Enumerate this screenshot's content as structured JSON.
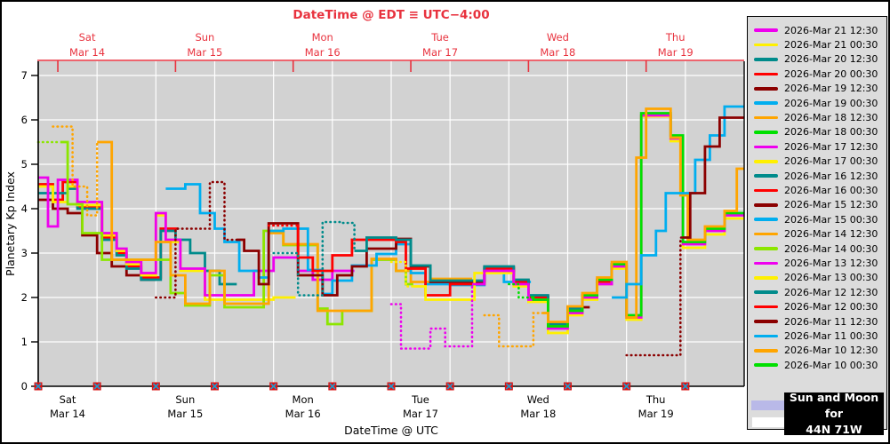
{
  "title": "DateTime @ EDT ≡ UTC−4:00",
  "xlabel_bottom": "DateTime @ UTC",
  "ylabel": "Planetary Kp Index",
  "sun_moon_box": {
    "line1": "Sun and Moon for",
    "line2": "44N 71W"
  },
  "colors": {
    "axis_red": "#E8323E",
    "plot_bg": "#D2D2D2",
    "legend_bg": "#DCDCDC",
    "grid": "#FFFFFF",
    "text": "#000000",
    "marker_red": "#DD1111",
    "marker_x": "#2299CC",
    "moon_bar": "#B9B9E8",
    "sun_bar": "#FFFFFF",
    "box_bg": "#000000",
    "box_text": "#FFFFFF"
  },
  "top_days": [
    {
      "day": "Sat",
      "date": "Mar 14"
    },
    {
      "day": "Sun",
      "date": "Mar 15"
    },
    {
      "day": "Mon",
      "date": "Mar 16"
    },
    {
      "day": "Tue",
      "date": "Mar 17"
    },
    {
      "day": "Wed",
      "date": "Mar 18"
    },
    {
      "day": "Thu",
      "date": "Mar 19"
    }
  ],
  "bottom_days": [
    {
      "day": "Sat",
      "date": "Mar 14"
    },
    {
      "day": "Sun",
      "date": "Mar 15"
    },
    {
      "day": "Mon",
      "date": "Mar 16"
    },
    {
      "day": "Tue",
      "date": "Mar 17"
    },
    {
      "day": "Wed",
      "date": "Mar 18"
    },
    {
      "day": "Thu",
      "date": "Mar 19"
    }
  ],
  "yticks": [
    0,
    1,
    2,
    3,
    4,
    5,
    6,
    7
  ],
  "chart_data": {
    "type": "line",
    "subtype": "step",
    "title": "DateTime @ EDT ≡ UTC−4:00",
    "xlabel": "DateTime @ UTC",
    "ylabel": "Planetary Kp Index",
    "x_unit": "hours since 2026-Mar-14 00:00 UTC",
    "x_range_hours": [
      0,
      144
    ],
    "ylim": [
      0,
      7.32
    ],
    "grid": "white lines, horizontal each Kp integer, vertical each 12 h",
    "legend_position": "right panel, newest forecast first",
    "marker_times_hours": [
      0,
      12,
      24,
      36,
      48,
      60,
      72,
      84,
      96,
      108,
      120,
      132
    ],
    "series": [
      {
        "name": "2026-Mar 21 12:30",
        "color": "#EE00EE",
        "dotted_until": 0,
        "end": 0,
        "points": []
      },
      {
        "name": "2026-Mar 21 00:30",
        "color": "#FFF000",
        "dotted_until": 0,
        "end": 0,
        "points": []
      },
      {
        "name": "2026-Mar 20 12:30",
        "color": "#008B8B",
        "dotted_until": 0,
        "end": 0,
        "points": []
      },
      {
        "name": "2026-Mar 20 00:30",
        "color": "#FF0000",
        "dotted_until": 0,
        "end": 0,
        "points": []
      },
      {
        "name": "2026-Mar 19 12:30",
        "color": "#8B0000",
        "dotted_until": 131.4,
        "end": 144,
        "points": [
          [
            120,
            0.7
          ],
          [
            131,
            3.35
          ],
          [
            133,
            4.35
          ],
          [
            136,
            5.4
          ],
          [
            139,
            6.05
          ]
        ]
      },
      {
        "name": "2026-Mar 19 00:30",
        "color": "#00AEEF",
        "dotted_until": 0,
        "end": 144,
        "points": [
          [
            117,
            2.0
          ],
          [
            120,
            2.3
          ],
          [
            123,
            2.95
          ],
          [
            126,
            3.5
          ],
          [
            128,
            4.35
          ],
          [
            134,
            5.1
          ],
          [
            137,
            5.65
          ],
          [
            140,
            6.3
          ]
        ]
      },
      {
        "name": "2026-Mar 18 12:30",
        "color": "#FFA500",
        "dotted_until": 103,
        "end": 144,
        "points": [
          [
            91,
            1.6
          ],
          [
            94,
            0.9
          ],
          [
            101,
            1.65
          ],
          [
            104,
            1.45
          ],
          [
            108,
            1.8
          ],
          [
            111,
            2.1
          ],
          [
            114,
            2.45
          ],
          [
            117,
            2.8
          ],
          [
            120,
            1.55
          ],
          [
            122,
            5.15
          ],
          [
            124,
            6.25
          ],
          [
            129,
            5.6
          ],
          [
            131,
            4.3
          ],
          [
            132.5,
            3.3
          ],
          [
            136,
            3.6
          ],
          [
            140,
            3.95
          ],
          [
            142.5,
            4.9
          ]
        ]
      },
      {
        "name": "2026-Mar 18 00:30",
        "color": "#00E000",
        "dotted_until": 100.5,
        "end": 144,
        "points": [
          [
            96,
            2.3
          ],
          [
            98,
            2.0
          ],
          [
            101,
            1.95
          ],
          [
            104,
            1.35
          ],
          [
            108,
            1.7
          ],
          [
            111,
            2.05
          ],
          [
            114,
            2.4
          ],
          [
            117,
            2.75
          ],
          [
            120,
            1.6
          ],
          [
            123,
            6.15
          ],
          [
            129,
            5.65
          ],
          [
            131.5,
            3.25
          ],
          [
            136,
            3.55
          ],
          [
            140,
            3.9
          ]
        ]
      },
      {
        "name": "2026-Mar 17 12:30",
        "color": "#EE00EE",
        "dotted_until": 88.5,
        "end": 144,
        "points": [
          [
            72,
            1.85
          ],
          [
            74,
            0.85
          ],
          [
            80,
            1.3
          ],
          [
            83,
            0.9
          ],
          [
            88.5,
            2.3
          ],
          [
            91,
            2.6
          ],
          [
            97,
            2.3
          ],
          [
            100,
            1.95
          ],
          [
            104,
            1.3
          ],
          [
            108,
            1.65
          ],
          [
            111,
            2.0
          ],
          [
            114,
            2.3
          ],
          [
            117,
            2.7
          ],
          [
            120,
            1.55
          ],
          [
            123,
            6.1
          ],
          [
            129,
            5.58
          ],
          [
            131.5,
            3.2
          ],
          [
            136,
            3.5
          ],
          [
            140,
            3.85
          ]
        ]
      },
      {
        "name": "2026-Mar 17 00:30",
        "color": "#FFF000",
        "dotted_until": 76.5,
        "end": 144,
        "points": [
          [
            72,
            2.8
          ],
          [
            75,
            2.25
          ],
          [
            79,
            1.95
          ],
          [
            89,
            2.55
          ],
          [
            97,
            2.25
          ],
          [
            100,
            1.9
          ],
          [
            104,
            1.2
          ],
          [
            108,
            1.6
          ],
          [
            111,
            1.95
          ],
          [
            114,
            2.3
          ],
          [
            117,
            2.65
          ],
          [
            120,
            1.5
          ],
          [
            123,
            6.08
          ],
          [
            129,
            5.52
          ],
          [
            131.5,
            3.12
          ],
          [
            136,
            3.42
          ],
          [
            140,
            3.78
          ]
        ]
      },
      {
        "name": "2026-Mar 16 12:30",
        "color": "#008B8B",
        "dotted_until": 64.5,
        "end": 120,
        "points": [
          [
            48,
            3.0
          ],
          [
            53,
            2.05
          ],
          [
            58,
            3.7
          ],
          [
            62,
            3.68
          ],
          [
            64.5,
            3.05
          ],
          [
            67,
            3.35
          ],
          [
            73,
            3.3
          ],
          [
            76,
            2.72
          ],
          [
            80,
            2.38
          ],
          [
            91,
            2.7
          ],
          [
            97,
            2.4
          ],
          [
            100,
            2.05
          ],
          [
            104,
            1.4
          ],
          [
            108,
            1.75
          ],
          [
            111,
            2.05
          ],
          [
            114,
            2.4
          ],
          [
            117,
            2.75
          ]
        ]
      },
      {
        "name": "2026-Mar 16 00:30",
        "color": "#FF0000",
        "dotted_until": 52.5,
        "end": 120,
        "points": [
          [
            47,
            3.62
          ],
          [
            53,
            2.9
          ],
          [
            56,
            2.6
          ],
          [
            60,
            2.95
          ],
          [
            64,
            3.3
          ],
          [
            73,
            3.25
          ],
          [
            75,
            2.65
          ],
          [
            79,
            2.05
          ],
          [
            84,
            2.3
          ],
          [
            91,
            2.65
          ],
          [
            97,
            2.35
          ],
          [
            100,
            2.0
          ],
          [
            104,
            1.35
          ],
          [
            108,
            1.7
          ],
          [
            111,
            2.0
          ],
          [
            114,
            2.35
          ],
          [
            117,
            2.7
          ]
        ]
      },
      {
        "name": "2026-Mar 15 12:30",
        "color": "#8B0000",
        "dotted_until": 40.5,
        "end": 112.5,
        "points": [
          [
            24,
            2.0
          ],
          [
            28,
            3.55
          ],
          [
            35,
            4.6
          ],
          [
            38,
            3.3
          ],
          [
            42,
            3.05
          ],
          [
            45,
            2.3
          ],
          [
            47,
            3.67
          ],
          [
            53,
            2.5
          ],
          [
            58,
            2.05
          ],
          [
            61,
            2.5
          ],
          [
            64,
            2.7
          ],
          [
            67,
            3.1
          ],
          [
            73,
            3.32
          ],
          [
            76,
            2.7
          ],
          [
            80,
            2.35
          ],
          [
            91,
            2.68
          ],
          [
            97,
            2.38
          ],
          [
            100,
            2.02
          ],
          [
            104,
            1.42
          ],
          [
            108,
            1.78
          ]
        ]
      },
      {
        "name": "2026-Mar 15 00:30",
        "color": "#00AEEF",
        "dotted_until": 26,
        "end": 100.5,
        "points": [
          [
            26,
            4.45
          ],
          [
            30,
            4.55
          ],
          [
            33,
            3.9
          ],
          [
            36,
            3.55
          ],
          [
            38,
            3.25
          ],
          [
            41,
            2.6
          ],
          [
            45,
            2.45
          ],
          [
            47,
            3.5
          ],
          [
            50,
            3.55
          ],
          [
            55,
            2.62
          ],
          [
            58,
            2.08
          ],
          [
            60,
            2.38
          ],
          [
            64,
            2.72
          ],
          [
            69,
            2.98
          ],
          [
            73,
            3.2
          ],
          [
            76,
            2.55
          ],
          [
            79,
            2.3
          ],
          [
            84,
            2.28
          ],
          [
            91,
            2.62
          ],
          [
            95,
            2.35
          ]
        ]
      },
      {
        "name": "2026-Mar 14 12:30",
        "color": "#FFA500",
        "dotted_until": 12,
        "end": 88.5,
        "points": [
          [
            3,
            5.85
          ],
          [
            7,
            4.5
          ],
          [
            10,
            3.85
          ],
          [
            12,
            5.5
          ],
          [
            15,
            2.85
          ],
          [
            24,
            3.25
          ],
          [
            27,
            2.5
          ],
          [
            30,
            1.86
          ],
          [
            35,
            2.6
          ],
          [
            38,
            1.86
          ],
          [
            47,
            3.45
          ],
          [
            50,
            3.2
          ],
          [
            57,
            1.7
          ],
          [
            68,
            2.87
          ],
          [
            73,
            2.6
          ],
          [
            76,
            2.35
          ],
          [
            80,
            2.42
          ]
        ]
      },
      {
        "name": "2026-Mar 14 00:30",
        "color": "#8CE600",
        "dotted_until": 4.5,
        "end": 76.5,
        "points": [
          [
            0,
            5.5
          ],
          [
            6,
            4.1
          ],
          [
            9,
            3.45
          ],
          [
            13,
            2.85
          ],
          [
            27,
            2.1
          ],
          [
            30,
            1.82
          ],
          [
            35,
            2.5
          ],
          [
            38,
            1.78
          ],
          [
            46,
            3.5
          ],
          [
            50,
            3.18
          ],
          [
            57,
            1.75
          ],
          [
            59,
            1.4
          ],
          [
            62,
            1.7
          ],
          [
            68,
            2.85
          ],
          [
            73,
            2.6
          ],
          [
            75,
            2.3
          ]
        ]
      },
      {
        "name": "2026-Mar 13 12:30",
        "color": "#EE00EE",
        "dotted_until": 0,
        "end": 64.5,
        "points": [
          [
            0,
            4.7
          ],
          [
            2,
            3.6
          ],
          [
            4,
            4.65
          ],
          [
            8,
            4.15
          ],
          [
            13,
            3.45
          ],
          [
            16,
            3.1
          ],
          [
            18,
            2.8
          ],
          [
            21,
            2.55
          ],
          [
            24,
            3.9
          ],
          [
            26,
            3.3
          ],
          [
            29,
            2.65
          ],
          [
            34,
            2.05
          ],
          [
            44,
            2.6
          ],
          [
            48,
            2.9
          ],
          [
            53,
            2.6
          ],
          [
            56,
            2.4
          ],
          [
            60,
            2.6
          ]
        ]
      },
      {
        "name": "2026-Mar 13 00:30",
        "color": "#FFF000",
        "dotted_until": 0,
        "end": 52.5,
        "points": [
          [
            0,
            4.5
          ],
          [
            3,
            4.15
          ],
          [
            6,
            4.5
          ],
          [
            8,
            4.08
          ],
          [
            13,
            3.4
          ],
          [
            16,
            3.05
          ],
          [
            18,
            2.75
          ],
          [
            21,
            2.5
          ],
          [
            24,
            3.85
          ],
          [
            26,
            3.25
          ],
          [
            29,
            2.6
          ],
          [
            34,
            1.95
          ],
          [
            48,
            2.0
          ]
        ]
      },
      {
        "name": "2026-Mar 12 12:30",
        "color": "#008B8B",
        "dotted_until": 0,
        "end": 40.5,
        "points": [
          [
            0,
            4.35
          ],
          [
            6,
            4.45
          ],
          [
            8,
            4.0
          ],
          [
            13,
            3.3
          ],
          [
            16,
            2.95
          ],
          [
            18,
            2.65
          ],
          [
            21,
            2.4
          ],
          [
            25,
            3.5
          ],
          [
            28,
            3.3
          ],
          [
            31,
            3.0
          ],
          [
            34,
            2.6
          ],
          [
            37,
            2.3
          ]
        ]
      },
      {
        "name": "2026-Mar 12 00:30",
        "color": "#FF0000",
        "dotted_until": 0,
        "end": 28.5,
        "points": [
          [
            0,
            4.55
          ],
          [
            3,
            4.2
          ],
          [
            5,
            4.6
          ],
          [
            8,
            4.05
          ],
          [
            13,
            3.35
          ],
          [
            16,
            3.0
          ],
          [
            18,
            2.7
          ],
          [
            21,
            2.45
          ],
          [
            25,
            3.55
          ]
        ]
      },
      {
        "name": "2026-Mar 11 12:30",
        "color": "#8B0000",
        "dotted_until": 0,
        "end": 24,
        "points": [
          [
            0,
            4.2
          ],
          [
            3,
            4.0
          ],
          [
            6,
            3.9
          ],
          [
            9,
            3.4
          ],
          [
            12,
            3.0
          ],
          [
            15,
            2.7
          ],
          [
            18,
            2.5
          ],
          [
            21,
            2.4
          ]
        ]
      },
      {
        "name": "2026-Mar 11 00:30",
        "color": "#00AEEF",
        "dotted_until": 0,
        "end": 0,
        "points": []
      },
      {
        "name": "2026-Mar 10 12:30",
        "color": "#FFA500",
        "dotted_until": 0,
        "end": 0,
        "points": []
      },
      {
        "name": "2026-Mar 10 00:30",
        "color": "#00E000",
        "dotted_until": 0,
        "end": 0,
        "points": []
      }
    ]
  }
}
